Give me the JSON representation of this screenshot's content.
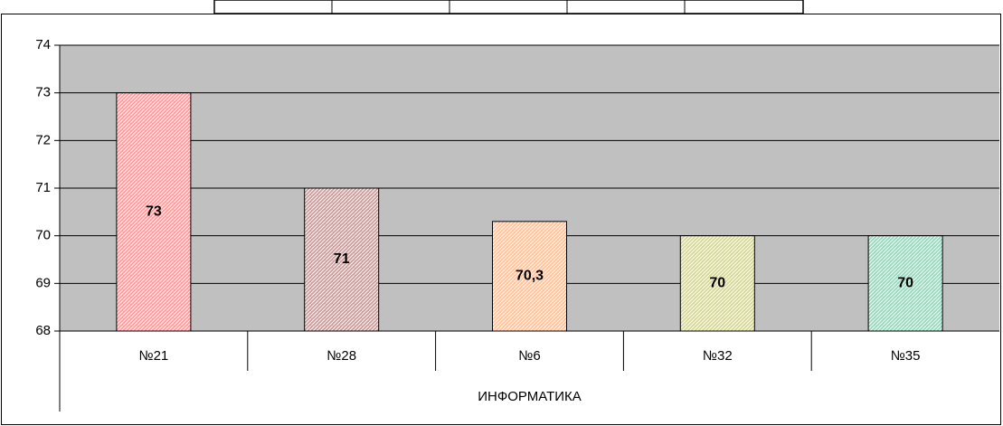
{
  "chart_data": {
    "type": "bar",
    "categories": [
      "№21",
      "№28",
      "№6",
      "№32",
      "№35"
    ],
    "values": [
      73,
      71,
      70.3,
      70,
      70
    ],
    "value_labels": [
      "73",
      "71",
      "70,3",
      "70",
      "70"
    ],
    "colors": [
      "#ff9a9a",
      "#c99a9a",
      "#ffc29a",
      "#d6d69a",
      "#9ad6bd"
    ],
    "group_label": "ИНФОРМАТИКА",
    "ylim": [
      68,
      74
    ],
    "yticks": [
      68,
      69,
      70,
      71,
      72,
      73,
      74
    ],
    "grid": true
  }
}
